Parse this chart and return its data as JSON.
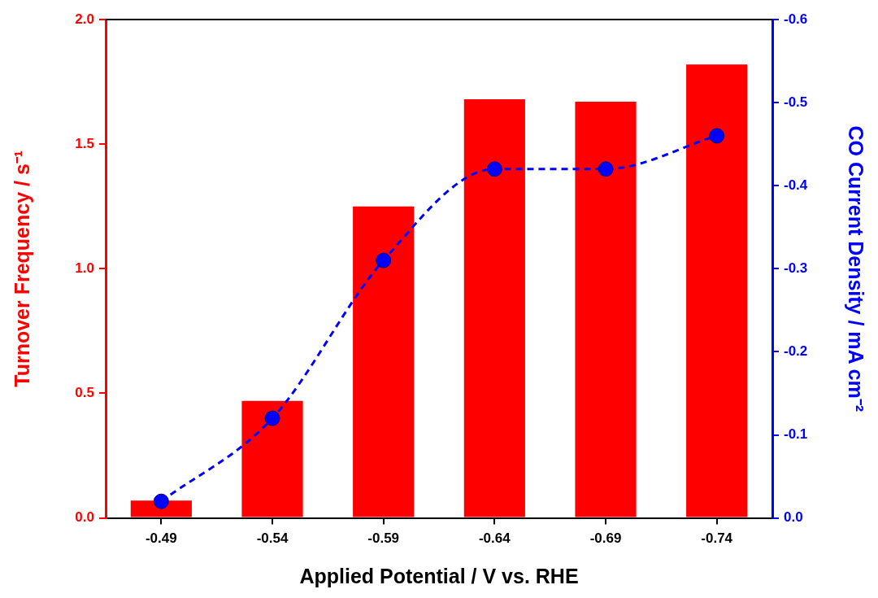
{
  "chart_data": {
    "type": "bar",
    "xlabel": "Applied Potential / V vs. RHE",
    "ylabel": "Turnover Frequency / s⁻¹",
    "y2label": "CO Current Density / mA cm⁻²",
    "categories": [
      "-0.49",
      "-0.54",
      "-0.59",
      "-0.64",
      "-0.69",
      "-0.74"
    ],
    "series": [
      {
        "color": "#ff0000",
        "values": [
          0.07,
          0.47,
          1.25,
          1.68,
          1.67,
          1.82
        ]
      },
      {
        "type": "line",
        "axis": "y2",
        "color": "#0000ff",
        "marker": "circle",
        "line_style": "dashed",
        "values": [
          -0.02,
          -0.12,
          -0.31,
          -0.42,
          -0.42,
          -0.46
        ]
      }
    ],
    "ylim": [
      0,
      2
    ],
    "yticks": [
      {
        "value": 0,
        "label": "0.0"
      },
      {
        "value": 0.5,
        "label": "0.5"
      },
      {
        "value": 1,
        "label": "1.0"
      },
      {
        "value": 1.5,
        "label": "1.5"
      },
      {
        "value": 2,
        "label": "2.0"
      }
    ],
    "y2lim": [
      0,
      -0.6
    ],
    "y2ticks": [
      {
        "value": 0,
        "label": "0.0"
      },
      {
        "value": -0.1,
        "label": "-0.1"
      },
      {
        "value": -0.2,
        "label": "-0.2"
      },
      {
        "value": -0.3,
        "label": "-0.3"
      },
      {
        "value": -0.4,
        "label": "-0.4"
      },
      {
        "value": -0.5,
        "label": "-0.5"
      },
      {
        "value": -0.6,
        "label": "-0.6"
      }
    ],
    "grid": false,
    "legend": false
  }
}
